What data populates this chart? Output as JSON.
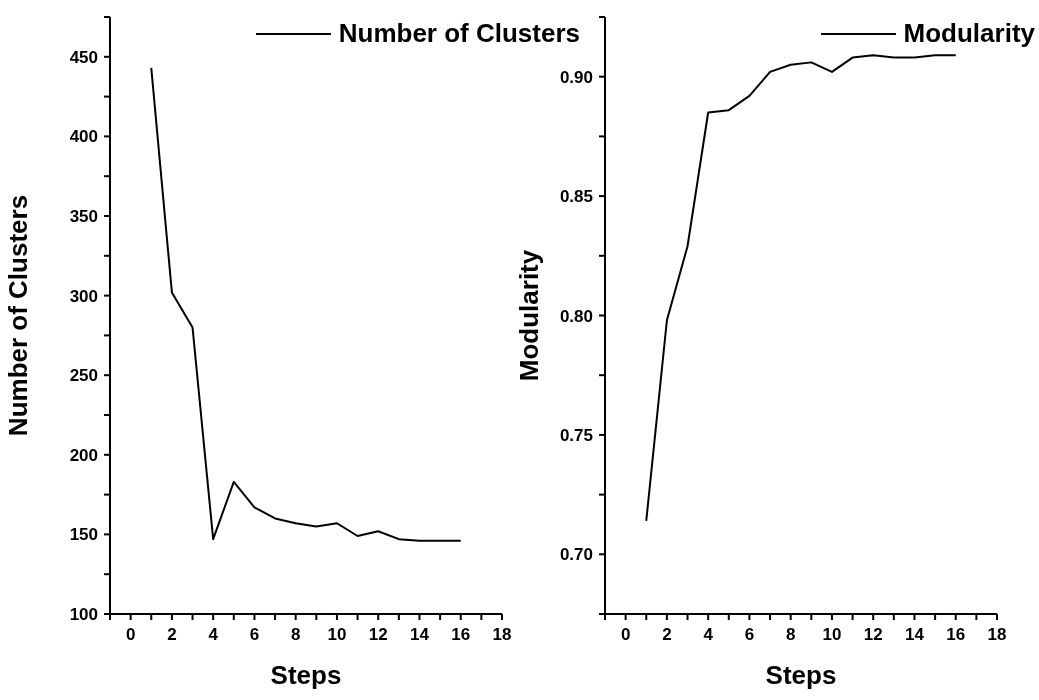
{
  "chart_data": [
    {
      "type": "line",
      "xlabel": "Steps",
      "ylabel": "Number of Clusters",
      "x": [
        1,
        2,
        3,
        4,
        5,
        6,
        7,
        8,
        9,
        10,
        11,
        12,
        13,
        14,
        15,
        16
      ],
      "series": [
        {
          "name": "Number of Clusters",
          "color": "#000000",
          "values": [
            443,
            302,
            280,
            147,
            183,
            167,
            160,
            157,
            155,
            157,
            149,
            152,
            147,
            146,
            146,
            146
          ]
        }
      ],
      "xlim": [
        -1,
        18
      ],
      "xticks": [
        {
          "value": -1,
          "label": null
        },
        0,
        {
          "value": 1,
          "label": null
        },
        2,
        {
          "value": 3,
          "label": null
        },
        4,
        {
          "value": 5,
          "label": null
        },
        6,
        {
          "value": 7,
          "label": null
        },
        8,
        {
          "value": 9,
          "label": null
        },
        10,
        {
          "value": 11,
          "label": null
        },
        12,
        {
          "value": 13,
          "label": null
        },
        14,
        {
          "value": 15,
          "label": null
        },
        16,
        {
          "value": 17,
          "label": null
        },
        18
      ],
      "ylim": [
        100,
        475
      ],
      "yticks": [
        100,
        {
          "value": 125,
          "label": null
        },
        150,
        {
          "value": 175,
          "label": null
        },
        200,
        {
          "value": 225,
          "label": null
        },
        250,
        {
          "value": 275,
          "label": null
        },
        300,
        {
          "value": 325,
          "label": null
        },
        350,
        {
          "value": 375,
          "label": null
        },
        400,
        {
          "value": 425,
          "label": null
        },
        450,
        {
          "value": 475,
          "label": null
        }
      ],
      "grid": false,
      "legend": "top right",
      "marker": "none",
      "line_style": "solid"
    },
    {
      "type": "line",
      "xlabel": "Steps",
      "ylabel": "Modularity",
      "x": [
        1,
        2,
        3,
        4,
        5,
        6,
        7,
        8,
        9,
        10,
        11,
        12,
        13,
        14,
        15,
        16
      ],
      "series": [
        {
          "name": "Modularity",
          "color": "#000000",
          "values": [
            0.714,
            0.798,
            0.829,
            0.885,
            0.886,
            0.892,
            0.902,
            0.905,
            0.906,
            0.902,
            0.908,
            0.909,
            0.908,
            0.908,
            0.909,
            0.909
          ]
        }
      ],
      "xlim": [
        -1,
        18
      ],
      "xticks": [
        {
          "value": -1,
          "label": null
        },
        0,
        {
          "value": 1,
          "label": null
        },
        2,
        {
          "value": 3,
          "label": null
        },
        4,
        {
          "value": 5,
          "label": null
        },
        6,
        {
          "value": 7,
          "label": null
        },
        8,
        {
          "value": 9,
          "label": null
        },
        10,
        {
          "value": 11,
          "label": null
        },
        12,
        {
          "value": 13,
          "label": null
        },
        14,
        {
          "value": 15,
          "label": null
        },
        16,
        {
          "value": 17,
          "label": null
        },
        18
      ],
      "ylim": [
        0.675,
        0.925
      ],
      "yticks": [
        {
          "value": 0.675,
          "label": null
        },
        {
          "value": 0.7,
          "label": "0.70"
        },
        {
          "value": 0.725,
          "label": null
        },
        {
          "value": 0.75,
          "label": "0.75"
        },
        {
          "value": 0.775,
          "label": null
        },
        {
          "value": 0.8,
          "label": "0.80"
        },
        {
          "value": 0.825,
          "label": null
        },
        {
          "value": 0.85,
          "label": "0.85"
        },
        {
          "value": 0.875,
          "label": null
        },
        {
          "value": 0.9,
          "label": "0.90"
        },
        {
          "value": 0.925,
          "label": null
        }
      ],
      "grid": false,
      "legend": "top right",
      "marker": "none",
      "line_style": "solid"
    }
  ]
}
